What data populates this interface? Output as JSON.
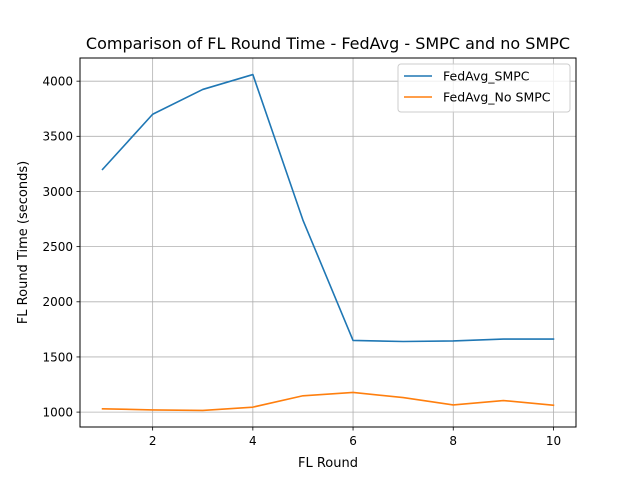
{
  "chart_data": {
    "type": "line",
    "title": "Comparison of FL Round Time - FedAvg - SMPC and no SMPC",
    "xlabel": "FL Round",
    "ylabel": "FL Round Time (seconds)",
    "x": [
      1,
      2,
      3,
      4,
      5,
      6,
      7,
      8,
      9,
      10
    ],
    "xlim": [
      0.55,
      10.45
    ],
    "ylim": [
      865,
      4210
    ],
    "xticks": [
      2,
      4,
      6,
      8,
      10
    ],
    "yticks": [
      1000,
      1500,
      2000,
      2500,
      3000,
      3500,
      4000
    ],
    "grid": true,
    "legend_position": "top-right",
    "series": [
      {
        "name": "FedAvg_SMPC",
        "color": "#1f77b4",
        "values": [
          3200,
          3700,
          3925,
          4060,
          2740,
          1650,
          1640,
          1645,
          1662,
          1662
        ]
      },
      {
        "name": "FedAvg_No SMPC",
        "color": "#ff7f0e",
        "values": [
          1030,
          1020,
          1015,
          1045,
          1148,
          1178,
          1132,
          1065,
          1105,
          1062
        ]
      }
    ]
  }
}
